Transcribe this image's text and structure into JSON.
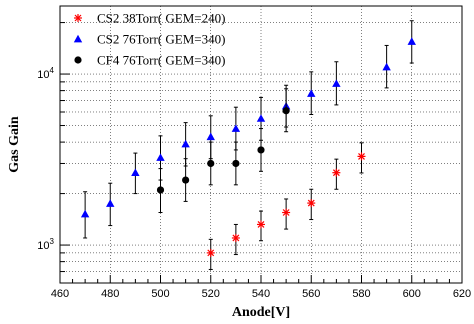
{
  "chart_data": {
    "type": "scatter",
    "xlabel": "Anode[V]",
    "ylabel": "Gas Gain",
    "xlim": [
      460,
      620
    ],
    "ylim": [
      600,
      25000
    ],
    "y_scale": "log",
    "grid": true,
    "legend_position": "top-left",
    "x_ticks": [
      "460",
      "480",
      "500",
      "520",
      "540",
      "560",
      "580",
      "600",
      "620"
    ],
    "y_ticks": [
      {
        "base": "10",
        "exp": "3",
        "value": 1000
      },
      {
        "base": "10",
        "exp": "4",
        "value": 10000
      }
    ],
    "series": [
      {
        "name": "CS2 38Torr(  GEM=240)",
        "marker": "star",
        "color": "#ff0000",
        "x": [
          520,
          530,
          540,
          550,
          560,
          570,
          580
        ],
        "y": [
          900,
          1100,
          1320,
          1550,
          1760,
          2650,
          3300
        ],
        "err_low": [
          720,
          880,
          1060,
          1240,
          1410,
          2120,
          2640
        ],
        "err_high": [
          1080,
          1320,
          1580,
          1860,
          2120,
          3180,
          3960
        ]
      },
      {
        "name": "CS2 76Torr(  GEM=340)",
        "marker": "triangle",
        "color": "#0000ff",
        "x": [
          470,
          480,
          490,
          500,
          510,
          520,
          530,
          540,
          550,
          560,
          570,
          590,
          600
        ],
        "y": [
          1520,
          1750,
          2650,
          3250,
          3900,
          4300,
          4800,
          5500,
          6500,
          7700,
          8800,
          11000,
          15500
        ],
        "err_low": [
          1100,
          1300,
          2000,
          2400,
          2900,
          3200,
          3600,
          4100,
          4900,
          5800,
          6600,
          8300,
          11600
        ],
        "err_high": [
          2050,
          2300,
          3450,
          4350,
          5200,
          5700,
          6400,
          7300,
          8600,
          10300,
          11800,
          14700,
          20500
        ]
      },
      {
        "name": "CF4 76Torr(  GEM=340)",
        "marker": "circle",
        "color": "#000000",
        "x": [
          500,
          510,
          520,
          530,
          540,
          550
        ],
        "y": [
          2100,
          2400,
          3000,
          3000,
          3600,
          6100
        ],
        "err_low": [
          1550,
          1800,
          2250,
          2250,
          2700,
          4600
        ],
        "err_high": [
          2800,
          3200,
          4000,
          4000,
          4800,
          8200
        ]
      }
    ]
  }
}
